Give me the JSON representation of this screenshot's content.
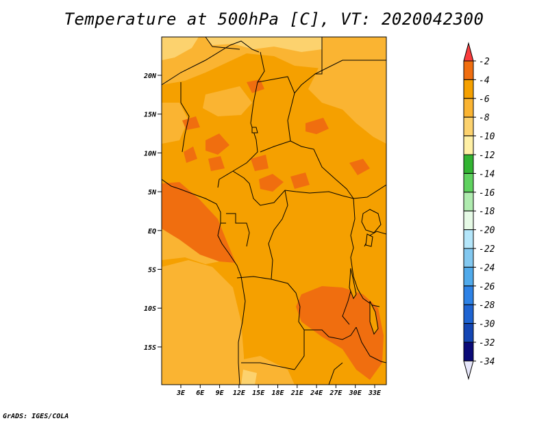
{
  "title": "Temperature at 500hPa [C], VT: 2020042300",
  "credit": "GrADS: IGES/COLA",
  "map": {
    "lat_ticks": [
      "20N",
      "15N",
      "10N",
      "5N",
      "EQ",
      "5S",
      "10S",
      "15S"
    ],
    "lon_ticks": [
      "3E",
      "6E",
      "9E",
      "12E",
      "15E",
      "18E",
      "21E",
      "24E",
      "27E",
      "30E",
      "33E"
    ]
  },
  "colorbar": {
    "labels": [
      "-2",
      "-4",
      "-6",
      "-8",
      "-10",
      "-12",
      "-14",
      "-16",
      "-18",
      "-20",
      "-22",
      "-24",
      "-26",
      "-28",
      "-30",
      "-32",
      "-34"
    ],
    "colors": [
      "#fa3c3c",
      "#f06e0f",
      "#f5a000",
      "#fab432",
      "#fcd26e",
      "#fff0a5",
      "#32b432",
      "#5fd25f",
      "#afebaf",
      "#e6fae6",
      "#b4e6fa",
      "#82c8f0",
      "#50aaeb",
      "#2d82e6",
      "#1e64d2",
      "#1446b4",
      "#0a0a78",
      "#e6e6fa"
    ],
    "colors_note": [
      "top-triangle",
      "-2..-4",
      "-4..-6",
      "-6..-8",
      "-8..-10",
      "-10..-12",
      "-12..-14",
      "-14..-16",
      "-16..-18",
      "-18..-20",
      "-20..-22",
      "-22..-24",
      "-24..-26",
      "-26..-28",
      "-28..-30",
      "-30..-32",
      "-32..-34",
      "bottom-triangle"
    ]
  }
}
